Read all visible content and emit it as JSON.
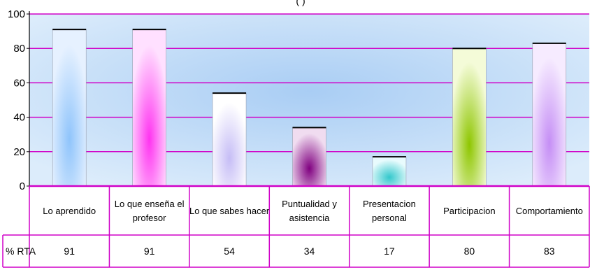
{
  "chart_data": {
    "type": "bar",
    "title": "(                    )",
    "categories": [
      [
        "Lo aprendido"
      ],
      [
        "Lo que enseña el",
        "profesor"
      ],
      [
        "Lo que sabes hacer"
      ],
      [
        "Puntualidad y",
        "asistencia"
      ],
      [
        "Presentacion",
        "personal"
      ],
      [
        "Participacion"
      ],
      [
        "Comportamiento"
      ]
    ],
    "series": [
      {
        "name": "% RTA",
        "values": [
          91,
          91,
          54,
          34,
          17,
          80,
          83
        ]
      }
    ],
    "ylim": [
      0,
      100
    ],
    "yticks": [
      0,
      20,
      40,
      60,
      80,
      100
    ],
    "grid": true,
    "data_table": true,
    "colors": {
      "gridline": "#d000c8",
      "plot_bg_top": "#dcecfb",
      "plot_bg_mid": "#a9cdf4",
      "bars": [
        [
          "#e6f1ff",
          "#8fc4fb"
        ],
        [
          "#ffe0ff",
          "#ff33f0"
        ],
        [
          "#ffffff",
          "#c6bdf6"
        ],
        [
          "#f0dcf0",
          "#800080"
        ],
        [
          "#e8fbfd",
          "#33c8cc"
        ],
        [
          "#f4fbd8",
          "#8ec600"
        ],
        [
          "#f6ebff",
          "#c58ef5"
        ]
      ]
    }
  }
}
